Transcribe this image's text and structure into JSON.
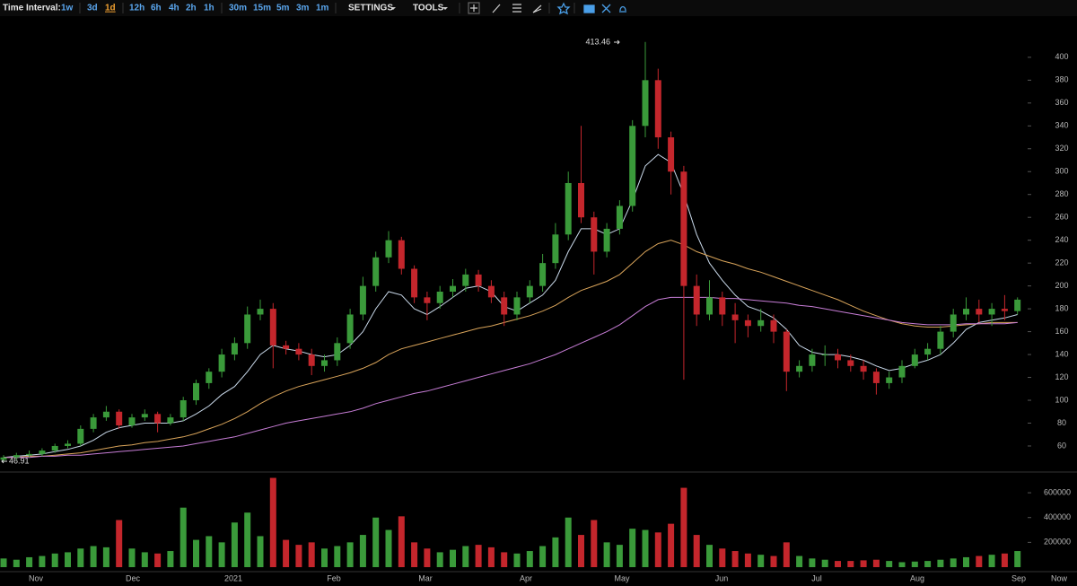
{
  "toolbar": {
    "label": "Time Interval:",
    "intervals": [
      "1w",
      "3d",
      "1d",
      "12h",
      "6h",
      "4h",
      "2h",
      "1h",
      "30m",
      "15m",
      "5m",
      "3m",
      "1m"
    ],
    "active_index": 2,
    "menus": [
      "SETTINGS",
      "TOOLS"
    ],
    "active_color": "#f0a030"
  },
  "chart_data": [
    {
      "type": "candlestick",
      "up_color": "#3a9a3a",
      "down_color": "#c4262c",
      "x_labels": [
        "Nov",
        "Dec",
        "2021",
        "Feb",
        "Mar",
        "Apr",
        "May",
        "Jun",
        "Jul",
        "Aug",
        "Sep",
        "Now"
      ],
      "open": [
        48,
        50,
        52,
        53,
        56,
        60,
        62,
        75,
        85,
        90,
        78,
        85,
        88,
        80,
        85,
        100,
        115,
        125,
        140,
        150,
        175,
        180,
        148,
        145,
        140,
        130,
        135,
        150,
        175,
        200,
        225,
        240,
        215,
        190,
        185,
        195,
        200,
        210,
        200,
        190,
        175,
        190,
        200,
        220,
        245,
        290,
        260,
        230,
        250,
        270,
        340,
        380,
        330,
        300,
        200,
        175,
        190,
        175,
        170,
        165,
        170,
        160,
        125,
        130,
        140,
        140,
        135,
        130,
        125,
        115,
        120,
        130,
        140,
        145,
        160,
        175,
        180,
        175,
        180,
        178
      ],
      "high": [
        52,
        54,
        56,
        58,
        62,
        65,
        78,
        88,
        95,
        92,
        88,
        92,
        90,
        88,
        103,
        118,
        128,
        145,
        155,
        182,
        188,
        185,
        152,
        150,
        145,
        140,
        155,
        180,
        208,
        230,
        248,
        243,
        218,
        195,
        200,
        206,
        215,
        214,
        205,
        195,
        195,
        205,
        228,
        255,
        300,
        340,
        265,
        255,
        275,
        345,
        413.46,
        390,
        335,
        305,
        210,
        205,
        195,
        185,
        175,
        180,
        175,
        162,
        135,
        145,
        148,
        145,
        140,
        135,
        128,
        125,
        135,
        145,
        150,
        165,
        180,
        190,
        188,
        185,
        192,
        190
      ],
      "low": [
        46.91,
        48,
        50,
        51,
        54,
        58,
        60,
        72,
        82,
        75,
        76,
        82,
        72,
        78,
        82,
        96,
        110,
        120,
        135,
        145,
        170,
        128,
        140,
        135,
        122,
        125,
        130,
        145,
        170,
        195,
        220,
        210,
        185,
        170,
        180,
        190,
        195,
        195,
        185,
        165,
        170,
        185,
        195,
        215,
        240,
        255,
        210,
        225,
        245,
        265,
        330,
        320,
        280,
        118,
        165,
        170,
        165,
        150,
        155,
        160,
        150,
        108,
        120,
        125,
        130,
        128,
        125,
        118,
        105,
        110,
        115,
        128,
        135,
        140,
        155,
        170,
        168,
        165,
        170,
        175
      ],
      "close": [
        50,
        52,
        53,
        56,
        60,
        62,
        75,
        85,
        90,
        78,
        85,
        88,
        80,
        85,
        100,
        115,
        125,
        140,
        150,
        175,
        180,
        148,
        145,
        140,
        130,
        135,
        150,
        175,
        200,
        225,
        240,
        215,
        190,
        185,
        195,
        200,
        210,
        200,
        190,
        175,
        190,
        200,
        220,
        245,
        290,
        260,
        230,
        250,
        270,
        340,
        380,
        330,
        300,
        200,
        175,
        190,
        175,
        170,
        165,
        170,
        160,
        125,
        130,
        140,
        140,
        135,
        130,
        125,
        115,
        120,
        130,
        140,
        145,
        160,
        175,
        180,
        175,
        180,
        178,
        188
      ],
      "series": [
        {
          "color": "#c9d9ea",
          "values": [
            50,
            51,
            52,
            53,
            55,
            57,
            60,
            65,
            72,
            76,
            78,
            80,
            80,
            80,
            82,
            88,
            95,
            105,
            112,
            125,
            140,
            148,
            145,
            143,
            140,
            138,
            140,
            148,
            160,
            180,
            195,
            192,
            180,
            175,
            182,
            190,
            198,
            200,
            195,
            182,
            178,
            185,
            192,
            205,
            230,
            250,
            250,
            245,
            250,
            275,
            305,
            315,
            308,
            280,
            245,
            220,
            205,
            192,
            182,
            178,
            172,
            162,
            148,
            142,
            140,
            140,
            138,
            135,
            130,
            126,
            128,
            132,
            135,
            140,
            150,
            162,
            168,
            170,
            172,
            175
          ]
        },
        {
          "color": "#d9a45a",
          "values": [
            50,
            50,
            51,
            51,
            52,
            53,
            54,
            56,
            58,
            60,
            61,
            63,
            64,
            66,
            68,
            71,
            75,
            79,
            84,
            90,
            97,
            103,
            108,
            112,
            115,
            118,
            121,
            124,
            128,
            133,
            140,
            145,
            148,
            151,
            154,
            157,
            160,
            163,
            165,
            168,
            171,
            174,
            178,
            183,
            190,
            196,
            200,
            204,
            210,
            220,
            230,
            237,
            240,
            236,
            230,
            226,
            222,
            219,
            215,
            212,
            208,
            204,
            200,
            196,
            192,
            188,
            183,
            178,
            174,
            170,
            167,
            165,
            164,
            164,
            165,
            166,
            167,
            168,
            168,
            168
          ]
        },
        {
          "color": "#c77dd6",
          "values": [
            50,
            50,
            50,
            51,
            51,
            52,
            52,
            53,
            54,
            55,
            56,
            57,
            58,
            59,
            60,
            62,
            64,
            66,
            68,
            71,
            74,
            77,
            80,
            82,
            84,
            86,
            88,
            90,
            93,
            97,
            100,
            103,
            106,
            108,
            111,
            114,
            117,
            120,
            123,
            126,
            129,
            132,
            136,
            140,
            145,
            150,
            155,
            160,
            166,
            174,
            182,
            188,
            190,
            190,
            190,
            190,
            189,
            189,
            188,
            187,
            186,
            185,
            183,
            182,
            180,
            178,
            176,
            174,
            172,
            170,
            168,
            167,
            166,
            166,
            166,
            167,
            167,
            167,
            167,
            168
          ]
        }
      ],
      "ylim": [
        38,
        436
      ],
      "yticks": [
        60,
        80,
        100,
        120,
        140,
        160,
        180,
        200,
        220,
        240,
        260,
        280,
        300,
        320,
        340,
        360,
        380,
        400
      ]
    },
    {
      "type": "bar",
      "values": [
        70000,
        60000,
        80000,
        90000,
        110000,
        120000,
        150000,
        170000,
        160000,
        380000,
        150000,
        120000,
        110000,
        130000,
        480000,
        220000,
        250000,
        200000,
        360000,
        440000,
        250000,
        720000,
        220000,
        180000,
        200000,
        150000,
        170000,
        200000,
        260000,
        400000,
        300000,
        410000,
        200000,
        150000,
        120000,
        140000,
        170000,
        180000,
        160000,
        120000,
        110000,
        130000,
        170000,
        240000,
        400000,
        260000,
        380000,
        200000,
        180000,
        310000,
        300000,
        280000,
        350000,
        640000,
        260000,
        180000,
        150000,
        130000,
        110000,
        100000,
        90000,
        200000,
        90000,
        70000,
        60000,
        50000,
        50000,
        55000,
        60000,
        50000,
        40000,
        45000,
        50000,
        60000,
        70000,
        80000,
        90000,
        100000,
        110000,
        130000
      ],
      "ylim": [
        0,
        760000
      ],
      "yticks": [
        200000,
        400000,
        600000
      ]
    }
  ]
}
